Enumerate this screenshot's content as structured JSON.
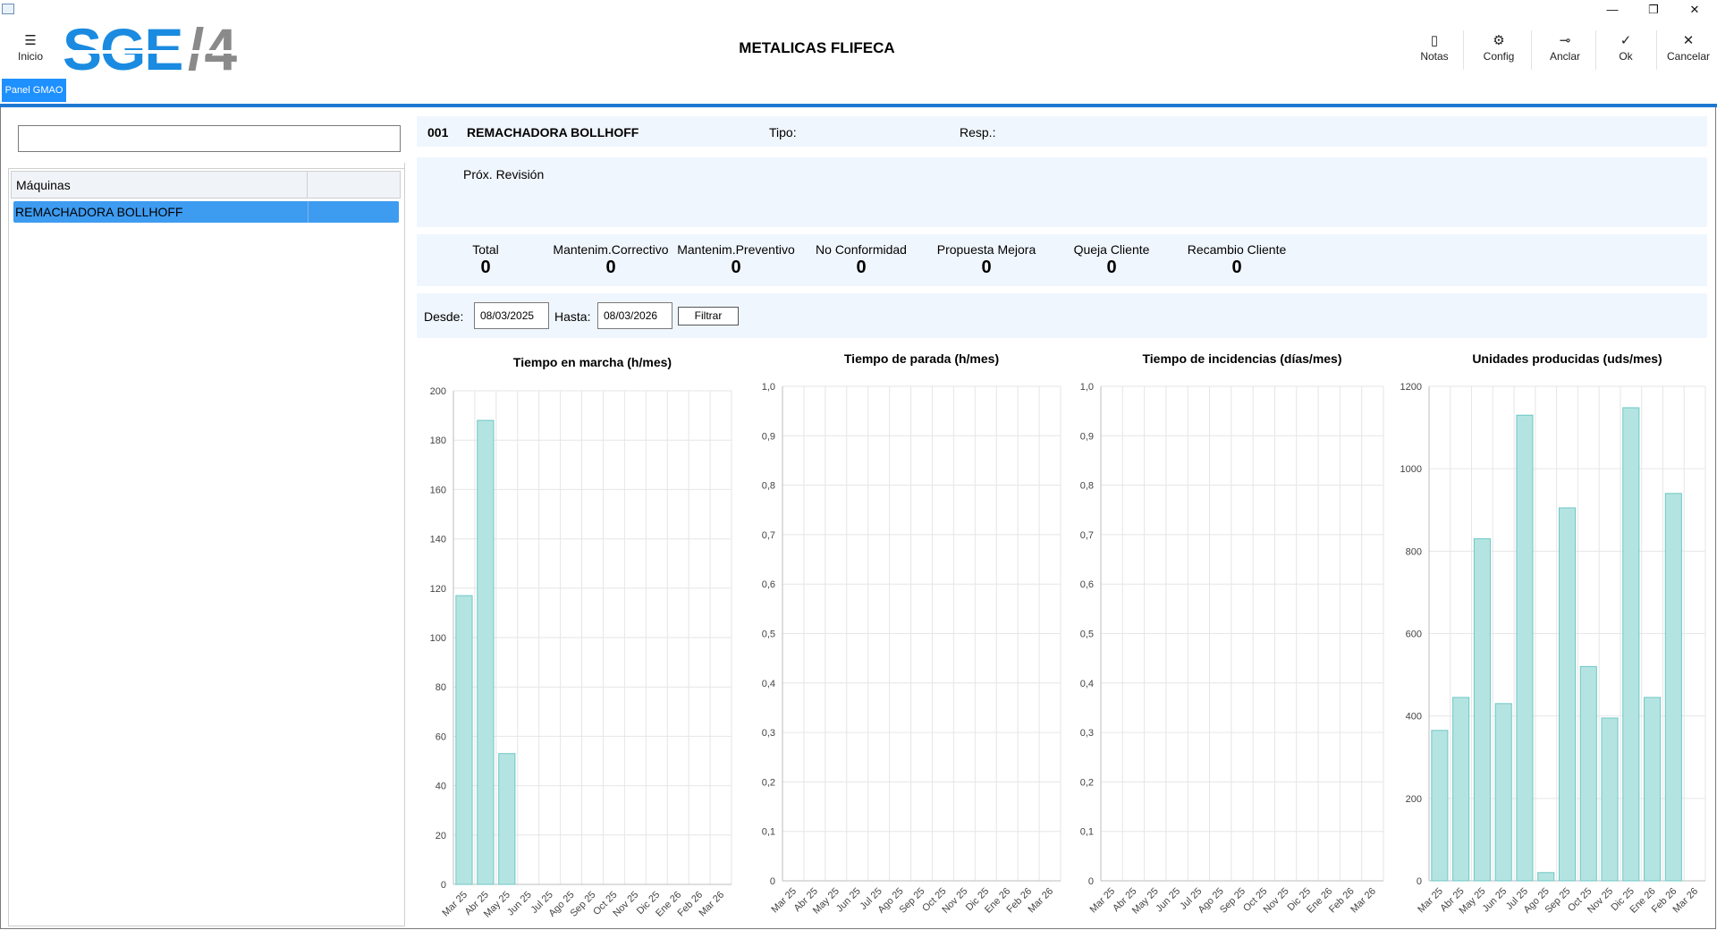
{
  "window": {
    "minimize_glyph": "—",
    "restore_glyph": "❐",
    "close_glyph": "✕"
  },
  "header": {
    "menu_label": "Inicio",
    "logo_text": "SGE",
    "logo_number": "/4",
    "company": "METALICAS FLIFECA",
    "toolbar": [
      {
        "label": "Notas",
        "icon": "note-icon"
      },
      {
        "label": "Config",
        "icon": "gear-icon"
      },
      {
        "label": "Anclar",
        "icon": "pin-icon"
      },
      {
        "label": "Ok",
        "icon": "check-icon"
      },
      {
        "label": "Cancelar",
        "icon": "close-icon"
      }
    ],
    "tab_label": "Panel GMAO"
  },
  "sidebar": {
    "search_value": "",
    "column_header": "Máquinas",
    "rows": [
      "REMACHADORA BOLLHOFF"
    ]
  },
  "machine": {
    "code": "001",
    "name": "REMACHADORA BOLLHOFF",
    "type_label": "Tipo:",
    "resp_label": "Resp.:",
    "revision_label": "Próx. Revisión"
  },
  "stats": [
    {
      "label": "Total",
      "value": "0"
    },
    {
      "label": "Mantenim.Correctivo",
      "value": "0"
    },
    {
      "label": "Mantenim.Preventivo",
      "value": "0"
    },
    {
      "label": "No Conformidad",
      "value": "0"
    },
    {
      "label": "Propuesta Mejora",
      "value": "0"
    },
    {
      "label": "Queja Cliente",
      "value": "0"
    },
    {
      "label": "Recambio Cliente",
      "value": "0"
    }
  ],
  "filter": {
    "from_label": "Desde:",
    "from_value": "08/03/2025",
    "to_label": "Hasta:",
    "to_value": "08/03/2026",
    "button_label": "Filtrar"
  },
  "colors": {
    "bar_fill": "#b4e4e2",
    "bar_stroke": "#6cc8c4",
    "grid": "#e6e6e6",
    "axis": "#bdbdbd",
    "accent": "#1e90ff"
  },
  "chart_data": [
    {
      "type": "bar",
      "title": "Tiempo en marcha (h/mes)",
      "categories": [
        "Mar 25",
        "Abr 25",
        "May 25",
        "Jun 25",
        "Jul 25",
        "Ago 25",
        "Sep 25",
        "Oct 25",
        "Nov 25",
        "Dic 25",
        "Ene 26",
        "Feb 26",
        "Mar 26"
      ],
      "values": [
        117,
        188,
        53,
        0,
        0,
        0,
        0,
        0,
        0,
        0,
        0,
        0,
        0
      ],
      "ylim": [
        0,
        200
      ],
      "yticks": [
        "0",
        "20",
        "40",
        "60",
        "80",
        "100",
        "120",
        "140",
        "160",
        "180",
        "200"
      ],
      "grid": true
    },
    {
      "type": "bar",
      "title": "Tiempo de parada (h/mes)",
      "categories": [
        "Mar 25",
        "Abr 25",
        "May 25",
        "Jun 25",
        "Jul 25",
        "Ago 25",
        "Sep 25",
        "Oct 25",
        "Nov 25",
        "Dic 25",
        "Ene 26",
        "Feb 26",
        "Mar 26"
      ],
      "values": [
        0,
        0,
        0,
        0,
        0,
        0,
        0,
        0,
        0,
        0,
        0,
        0,
        0
      ],
      "ylim": [
        0,
        1
      ],
      "yticks": [
        "0",
        "0,1",
        "0,2",
        "0,3",
        "0,4",
        "0,5",
        "0,6",
        "0,7",
        "0,8",
        "0,9",
        "1,0"
      ],
      "grid": true
    },
    {
      "type": "bar",
      "title": "Tiempo de incidencias (días/mes)",
      "categories": [
        "Mar 25",
        "Abr 25",
        "May 25",
        "Jun 25",
        "Jul 25",
        "Ago 25",
        "Sep 25",
        "Oct 25",
        "Nov 25",
        "Dic 25",
        "Ene 26",
        "Feb 26",
        "Mar 26"
      ],
      "values": [
        0,
        0,
        0,
        0,
        0,
        0,
        0,
        0,
        0,
        0,
        0,
        0,
        0
      ],
      "ylim": [
        0,
        1
      ],
      "yticks": [
        "0",
        "0,1",
        "0,2",
        "0,3",
        "0,4",
        "0,5",
        "0,6",
        "0,7",
        "0,8",
        "0,9",
        "1,0"
      ],
      "grid": true
    },
    {
      "type": "bar",
      "title": "Unidades producidas (uds/mes)",
      "categories": [
        "Mar 25",
        "Abr 25",
        "May 25",
        "Jun 25",
        "Jul 25",
        "Ago 25",
        "Sep 25",
        "Oct 25",
        "Nov 25",
        "Dic 25",
        "Ene 26",
        "Feb 26",
        "Mar 26"
      ],
      "values": [
        365,
        445,
        830,
        430,
        1130,
        20,
        905,
        520,
        395,
        1148,
        445,
        940,
        0
      ],
      "ylim": [
        0,
        1200
      ],
      "yticks": [
        "0",
        "200",
        "400",
        "600",
        "800",
        "1000",
        "1200"
      ],
      "grid": true
    }
  ]
}
